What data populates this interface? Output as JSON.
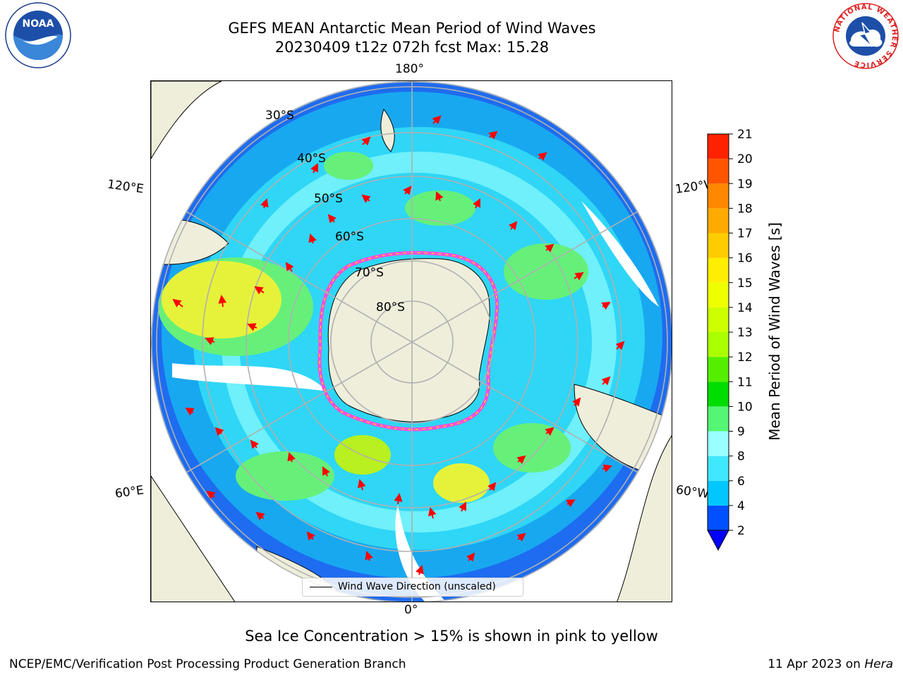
{
  "header": {
    "title_line1": "GEFS MEAN Antarctic Mean Period of Wind Waves",
    "title_line2": "20230409 t12z 072h fcst   Max: 15.28"
  },
  "logos": {
    "left": "NOAA",
    "right_ring": "NATIONAL WEATHER SERVICE"
  },
  "map": {
    "lon_labels": {
      "top": "180°",
      "bottom": "0°",
      "upper_left": "120°E",
      "upper_right": "120°W",
      "lower_left": "60°E",
      "lower_right": "60°W"
    },
    "lat_labels": [
      "30°S",
      "40°S",
      "50°S",
      "60°S",
      "70°S",
      "80°S"
    ],
    "legend_label": "Wind Wave Direction (unscaled)"
  },
  "colorbar": {
    "title": "Mean Period of Wind Waves [s]",
    "ticks": [
      "2",
      "4",
      "6",
      "8",
      "9",
      "10",
      "11",
      "12",
      "13",
      "14",
      "15",
      "16",
      "17",
      "18",
      "19",
      "20",
      "21"
    ],
    "colors": [
      "#0050ff",
      "#00c8ff",
      "#40e8ff",
      "#99ffff",
      "#55f575",
      "#00dd00",
      "#55ee00",
      "#aaff00",
      "#ccff00",
      "#eeff00",
      "#ffee00",
      "#ffcc00",
      "#ffaa00",
      "#ff8800",
      "#ff5500",
      "#ff2200"
    ],
    "under_color": "#0000ff"
  },
  "footer": {
    "note": "Sea Ice Concentration > 15% is shown in pink to yellow",
    "left": "NCEP/EMC/Verification Post Processing Product Generation Branch",
    "right_date": "11 Apr 2023 on",
    "right_machine": "Hera"
  }
}
